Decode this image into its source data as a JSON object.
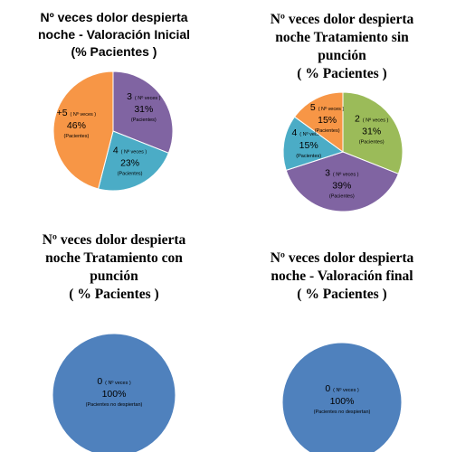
{
  "chart_data": [
    {
      "type": "pie",
      "title_lines": [
        "Nº veces dolor despierta",
        "noche  - Valoración Inicial",
        "(% Pacientes )"
      ],
      "slices": [
        {
          "category": "3",
          "unit": "( Nº veces )",
          "label": "31%",
          "value": 31,
          "color": "#8064a2"
        },
        {
          "category": "4",
          "unit": "( Nº veces )",
          "label": "23%",
          "value": 23,
          "color": "#4bacc6"
        },
        {
          "category": "+5",
          "unit": "( Nº veces )",
          "label": "46%",
          "value": 46,
          "color": "#f79646"
        }
      ],
      "start_angle_deg": 0,
      "data_label_suffix": "(Pacientes)"
    },
    {
      "type": "pie",
      "title_lines": [
        "Nº veces dolor despierta",
        "noche Tratamiento sin",
        "punción",
        "( % Pacientes )"
      ],
      "slices": [
        {
          "category": "2",
          "unit": "( Nº veces )",
          "label": "31%",
          "value": 31,
          "color": "#9bbb59"
        },
        {
          "category": "3",
          "unit": "( Nº veces )",
          "label": "39%",
          "value": 39,
          "color": "#8064a2"
        },
        {
          "category": "4",
          "unit": "( Nº veces )",
          "label": "15%",
          "value": 15,
          "color": "#4bacc6"
        },
        {
          "category": "5",
          "unit": "( Nº veces )",
          "label": "15%",
          "value": 15,
          "color": "#f79646"
        }
      ],
      "start_angle_deg": 0,
      "data_label_suffix": "(Pacientes)"
    },
    {
      "type": "pie",
      "title_lines": [
        "Nº veces dolor despierta",
        "noche Tratamiento con",
        "punción",
        "( % Pacientes )"
      ],
      "slices": [
        {
          "category": "0",
          "unit": "( Nº veces )",
          "label": "100%",
          "value": 100,
          "color": "#4f81bd"
        }
      ],
      "start_angle_deg": 0,
      "data_label_suffix": "(Pacientes no despiertan)"
    },
    {
      "type": "pie",
      "title_lines": [
        "Nº veces dolor despierta",
        "noche - Valoración final",
        "( % Pacientes )"
      ],
      "slices": [
        {
          "category": "0",
          "unit": "( Nº veces )",
          "label": "100%",
          "value": 100,
          "color": "#4f81bd"
        }
      ],
      "start_angle_deg": 0,
      "data_label_suffix": "(Pacientes no despiertan)"
    }
  ]
}
